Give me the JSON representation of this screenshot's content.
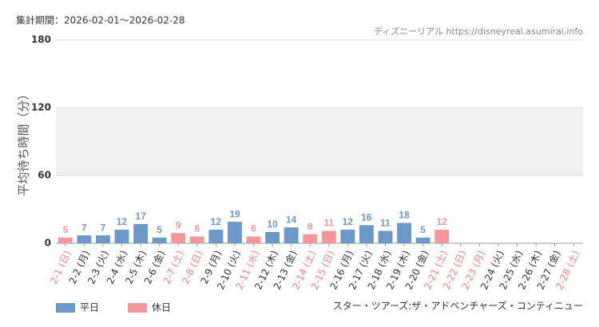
{
  "chart_data": {
    "type": "bar",
    "title": "集計期間：2026-02-01～2026-02-28",
    "source": "ディズニーリアル https://disneyreal.asumirai.info",
    "attraction": "スター・ツアーズ:ザ・アドベンチャーズ・コンティニュー",
    "y_label": "平均待ち時間（分）",
    "categories": [
      "2-1 (日)",
      "2-2 (月)",
      "2-3 (火)",
      "2-4 (水)",
      "2-5 (木)",
      "2-6 (金)",
      "2-7 (土)",
      "2-8 (日)",
      "2-9 (月)",
      "2-10 (火)",
      "2-11 (水)",
      "2-12 (木)",
      "2-13 (金)",
      "2-14 (土)",
      "2-15 (日)",
      "2-16 (月)",
      "2-17 (火)",
      "2-18 (水)",
      "2-19 (木)",
      "2-20 (金)",
      "2-21 (土)",
      "2-22 (日)",
      "2-23 (月)",
      "2-24 (火)",
      "2-25 (水)",
      "2-26 (木)",
      "2-27 (金)",
      "2-28 (土)"
    ],
    "label_colors": [
      "#f08080",
      "#333333",
      "#333333",
      "#333333",
      "#333333",
      "#333333",
      "#f08080",
      "#f08080",
      "#333333",
      "#333333",
      "#f08080",
      "#333333",
      "#333333",
      "#f08080",
      "#f08080",
      "#333333",
      "#333333",
      "#333333",
      "#333333",
      "#333333",
      "#f08080",
      "#f08080",
      "#f08080",
      "#333333",
      "#333333",
      "#333333",
      "#333333",
      "#f08080"
    ],
    "series": [
      {
        "name": "平日",
        "color": "#6b98c6",
        "values": [
          null,
          7,
          7,
          12,
          17,
          5,
          null,
          null,
          12,
          19,
          null,
          10,
          14,
          null,
          null,
          12,
          16,
          11,
          18,
          5,
          null,
          null,
          null,
          null,
          null,
          null,
          null,
          null
        ]
      },
      {
        "name": "休日",
        "color": "#f4979b",
        "values": [
          5,
          null,
          null,
          null,
          null,
          null,
          9,
          6,
          null,
          null,
          6,
          null,
          null,
          8,
          11,
          null,
          null,
          null,
          null,
          null,
          12,
          null,
          null,
          null,
          null,
          null,
          null,
          null
        ]
      }
    ],
    "ylim": [
      0,
      180
    ],
    "yticks": [
      0,
      60,
      120,
      180
    ],
    "grid": true
  }
}
